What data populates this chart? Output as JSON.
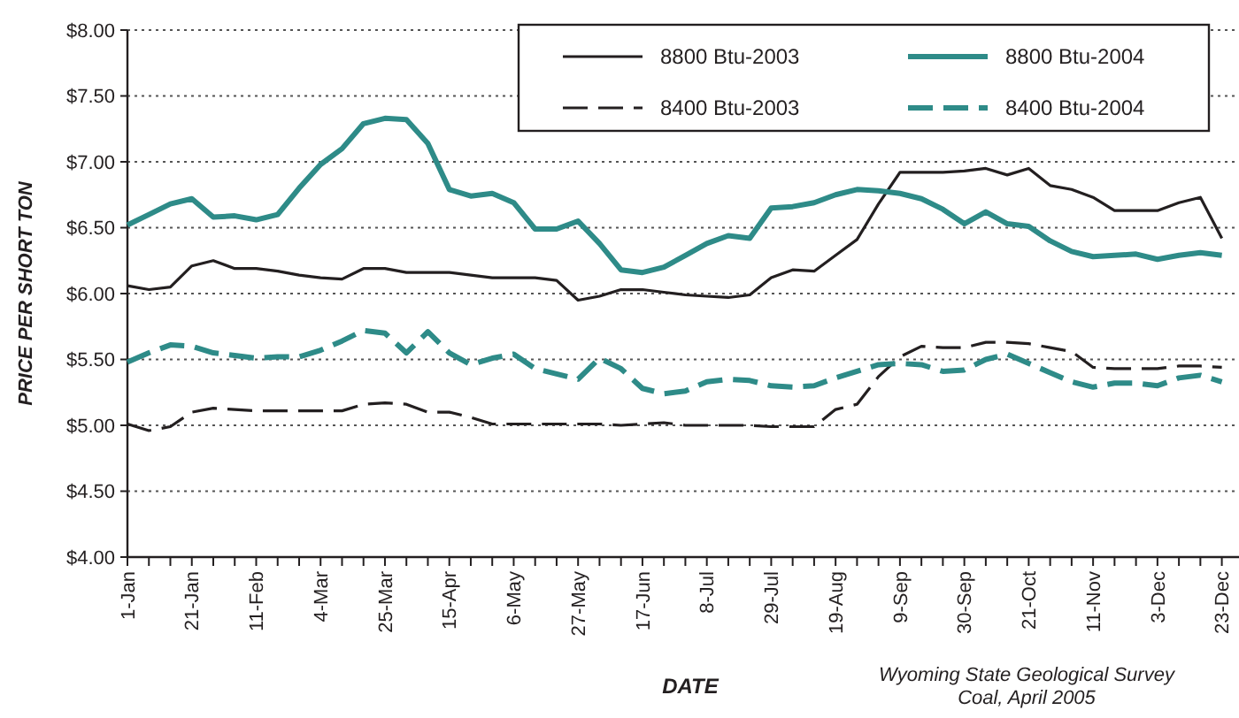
{
  "chart_data": {
    "type": "line",
    "xlabel": "DATE",
    "ylabel": "PRICE PER SHORT TON",
    "categories": [
      "1-Jan",
      null,
      null,
      "21-Jan",
      null,
      null,
      "11-Feb",
      null,
      null,
      "4-Mar",
      null,
      null,
      "25-Mar",
      null,
      null,
      "15-Apr",
      null,
      null,
      "6-May",
      null,
      null,
      "27-May",
      null,
      null,
      "17-Jun",
      null,
      null,
      "8-Jul",
      null,
      null,
      "29-Jul",
      null,
      null,
      "19-Aug",
      null,
      null,
      "9-Sep",
      null,
      null,
      "30-Sep",
      null,
      null,
      "21-Oct",
      null,
      null,
      "11-Nov",
      null,
      null,
      "3-Dec",
      null,
      null,
      "23-Dec"
    ],
    "ylim": [
      4,
      8
    ],
    "yticks": [
      {
        "value": 4,
        "label": "$4.00"
      },
      {
        "value": 4.5,
        "label": "$4.50"
      },
      {
        "value": 5,
        "label": "$5.00"
      },
      {
        "value": 5.5,
        "label": "$5.50"
      },
      {
        "value": 6,
        "label": "$6.00"
      },
      {
        "value": 6.5,
        "label": "$6.50"
      },
      {
        "value": 7,
        "label": "$7.00"
      },
      {
        "value": 7.5,
        "label": "$7.50"
      },
      {
        "value": 8,
        "label": "$8.00"
      }
    ],
    "grid": "y",
    "legend": "top right",
    "marker": "none",
    "series": [
      {
        "name": "8800 Btu-2003",
        "color": "#231f20",
        "line_style": "solid",
        "values": [
          6.06,
          6.03,
          6.05,
          6.21,
          6.25,
          6.19,
          6.19,
          6.17,
          6.14,
          6.12,
          6.11,
          6.19,
          6.19,
          6.16,
          6.16,
          6.16,
          6.14,
          6.12,
          6.12,
          6.12,
          6.1,
          5.95,
          5.98,
          6.03,
          6.03,
          6.01,
          5.99,
          5.98,
          5.97,
          5.99,
          6.12,
          6.18,
          6.17,
          6.29,
          6.41,
          6.68,
          6.92,
          6.92,
          6.92,
          6.93,
          6.95,
          6.9,
          6.95,
          6.82,
          6.79,
          6.73,
          6.63,
          6.63,
          6.63,
          6.69,
          6.73,
          6.42
        ]
      },
      {
        "name": "8800 Btu-2004",
        "color": "#2e8b88",
        "line_style": "solid",
        "values": [
          6.52,
          6.6,
          6.68,
          6.72,
          6.58,
          6.59,
          6.56,
          6.6,
          6.8,
          6.98,
          7.1,
          7.29,
          7.33,
          7.32,
          7.14,
          6.79,
          6.74,
          6.76,
          6.69,
          6.49,
          6.49,
          6.55,
          6.38,
          6.18,
          6.16,
          6.2,
          6.29,
          6.38,
          6.44,
          6.42,
          6.65,
          6.66,
          6.69,
          6.75,
          6.79,
          6.78,
          6.76,
          6.72,
          6.64,
          6.53,
          6.62,
          6.53,
          6.51,
          6.4,
          6.32,
          6.28,
          6.29,
          6.3,
          6.26,
          6.29,
          6.31,
          6.29
        ]
      },
      {
        "name": "8400 Btu-2003",
        "color": "#231f20",
        "line_style": "dashed",
        "values": [
          5.01,
          4.96,
          4.99,
          5.1,
          5.13,
          5.12,
          5.11,
          5.11,
          5.11,
          5.11,
          5.11,
          5.16,
          5.17,
          5.16,
          5.1,
          5.1,
          5.06,
          5.01,
          5.01,
          5.01,
          5.01,
          5.01,
          5.01,
          5.0,
          5.01,
          5.02,
          5.0,
          5.0,
          5.0,
          5.0,
          4.99,
          4.99,
          4.99,
          5.12,
          5.16,
          5.37,
          5.52,
          5.6,
          5.59,
          5.59,
          5.63,
          5.63,
          5.62,
          5.59,
          5.56,
          5.44,
          5.43,
          5.43,
          5.43,
          5.45,
          5.45,
          5.44
        ]
      },
      {
        "name": "8400 Btu-2004",
        "color": "#2e8b88",
        "line_style": "dashed",
        "values": [
          5.48,
          5.55,
          5.61,
          5.6,
          5.55,
          5.53,
          5.51,
          5.52,
          5.52,
          5.57,
          5.64,
          5.72,
          5.7,
          5.55,
          5.71,
          5.55,
          5.46,
          5.51,
          5.54,
          5.43,
          5.39,
          5.35,
          5.51,
          5.43,
          5.28,
          5.24,
          5.26,
          5.33,
          5.35,
          5.34,
          5.3,
          5.29,
          5.3,
          5.36,
          5.41,
          5.46,
          5.47,
          5.46,
          5.41,
          5.42,
          5.5,
          5.54,
          5.47,
          5.4,
          5.33,
          5.29,
          5.32,
          5.32,
          5.3,
          5.36,
          5.38,
          5.33
        ]
      }
    ],
    "annotations": [
      "Wyoming State Geological Survey",
      "Coal, April 2005"
    ]
  }
}
